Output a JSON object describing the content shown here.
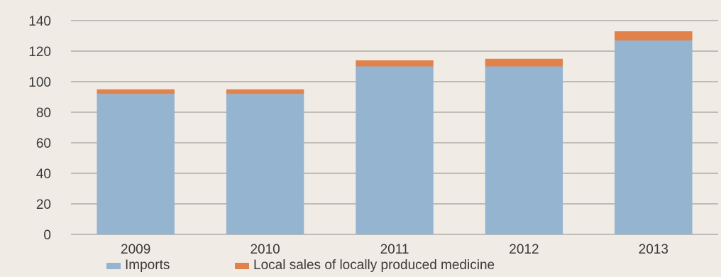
{
  "chart_data": {
    "type": "bar",
    "stacked": true,
    "categories": [
      "2009",
      "2010",
      "2011",
      "2012",
      "2013"
    ],
    "series": [
      {
        "name": "Imports",
        "values": [
          92,
          92,
          110,
          110,
          127
        ],
        "color": "#95b4d0"
      },
      {
        "name": "Local sales of locally produced medicine",
        "values": [
          3,
          3,
          4,
          5,
          6
        ],
        "color": "#e0824a"
      }
    ],
    "title": "",
    "xlabel": "",
    "ylabel": "",
    "ylim": [
      0,
      140
    ],
    "yticks": [
      0,
      20,
      40,
      60,
      80,
      100,
      120,
      140
    ],
    "grid": true,
    "legend_position": "bottom"
  }
}
